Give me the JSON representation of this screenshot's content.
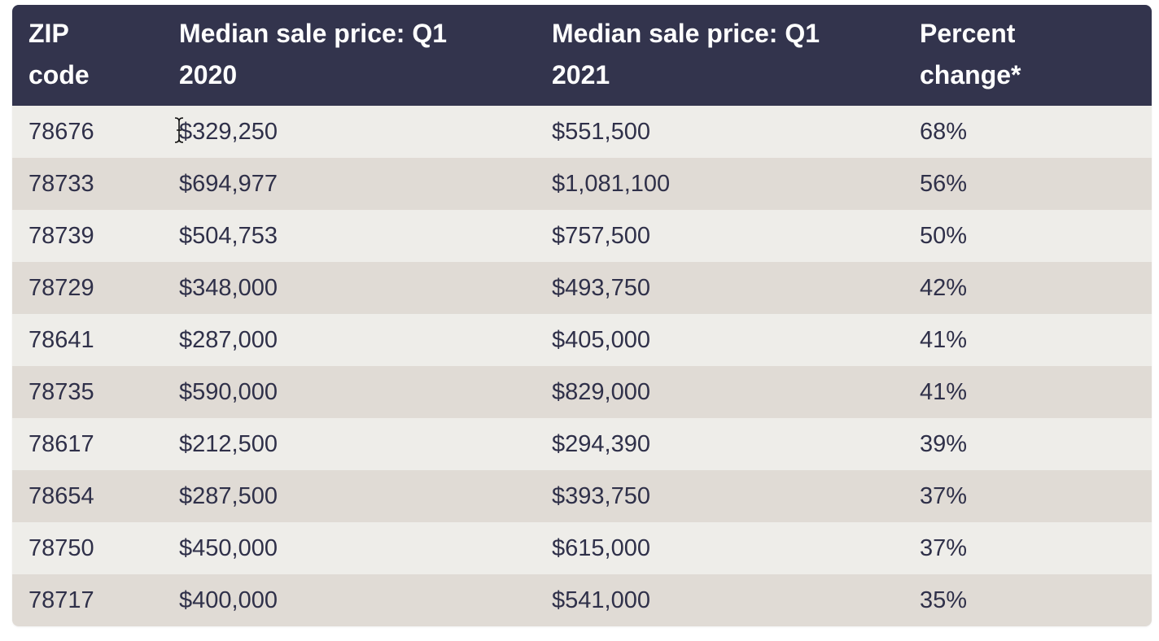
{
  "table": {
    "headers": [
      "ZIP code",
      "Median sale price: Q1 2020",
      "Median sale price: Q1 2021",
      "Percent change*"
    ],
    "rows": [
      [
        "78676",
        "$329,250",
        "$551,500",
        "68%"
      ],
      [
        "78733",
        "$694,977",
        "$1,081,100",
        "56%"
      ],
      [
        "78739",
        "$504,753",
        "$757,500",
        "50%"
      ],
      [
        "78729",
        "$348,000",
        "$493,750",
        "42%"
      ],
      [
        "78641",
        "$287,000",
        "$405,000",
        "41%"
      ],
      [
        "78735",
        "$590,000",
        "$829,000",
        "41%"
      ],
      [
        "78617",
        "$212,500",
        "$294,390",
        "39%"
      ],
      [
        "78654",
        "$287,500",
        "$393,750",
        "37%"
      ],
      [
        "78750",
        "$450,000",
        "$615,000",
        "37%"
      ],
      [
        "78717",
        "$400,000",
        "$541,000",
        "35%"
      ]
    ]
  },
  "colors": {
    "header_bg": "#33344d",
    "header_text": "#ffffff",
    "row_odd": "#eeede9",
    "row_even": "#e0dbd5",
    "body_text": "#2f3049"
  },
  "cursor": {
    "icon": "text-cursor-icon"
  }
}
